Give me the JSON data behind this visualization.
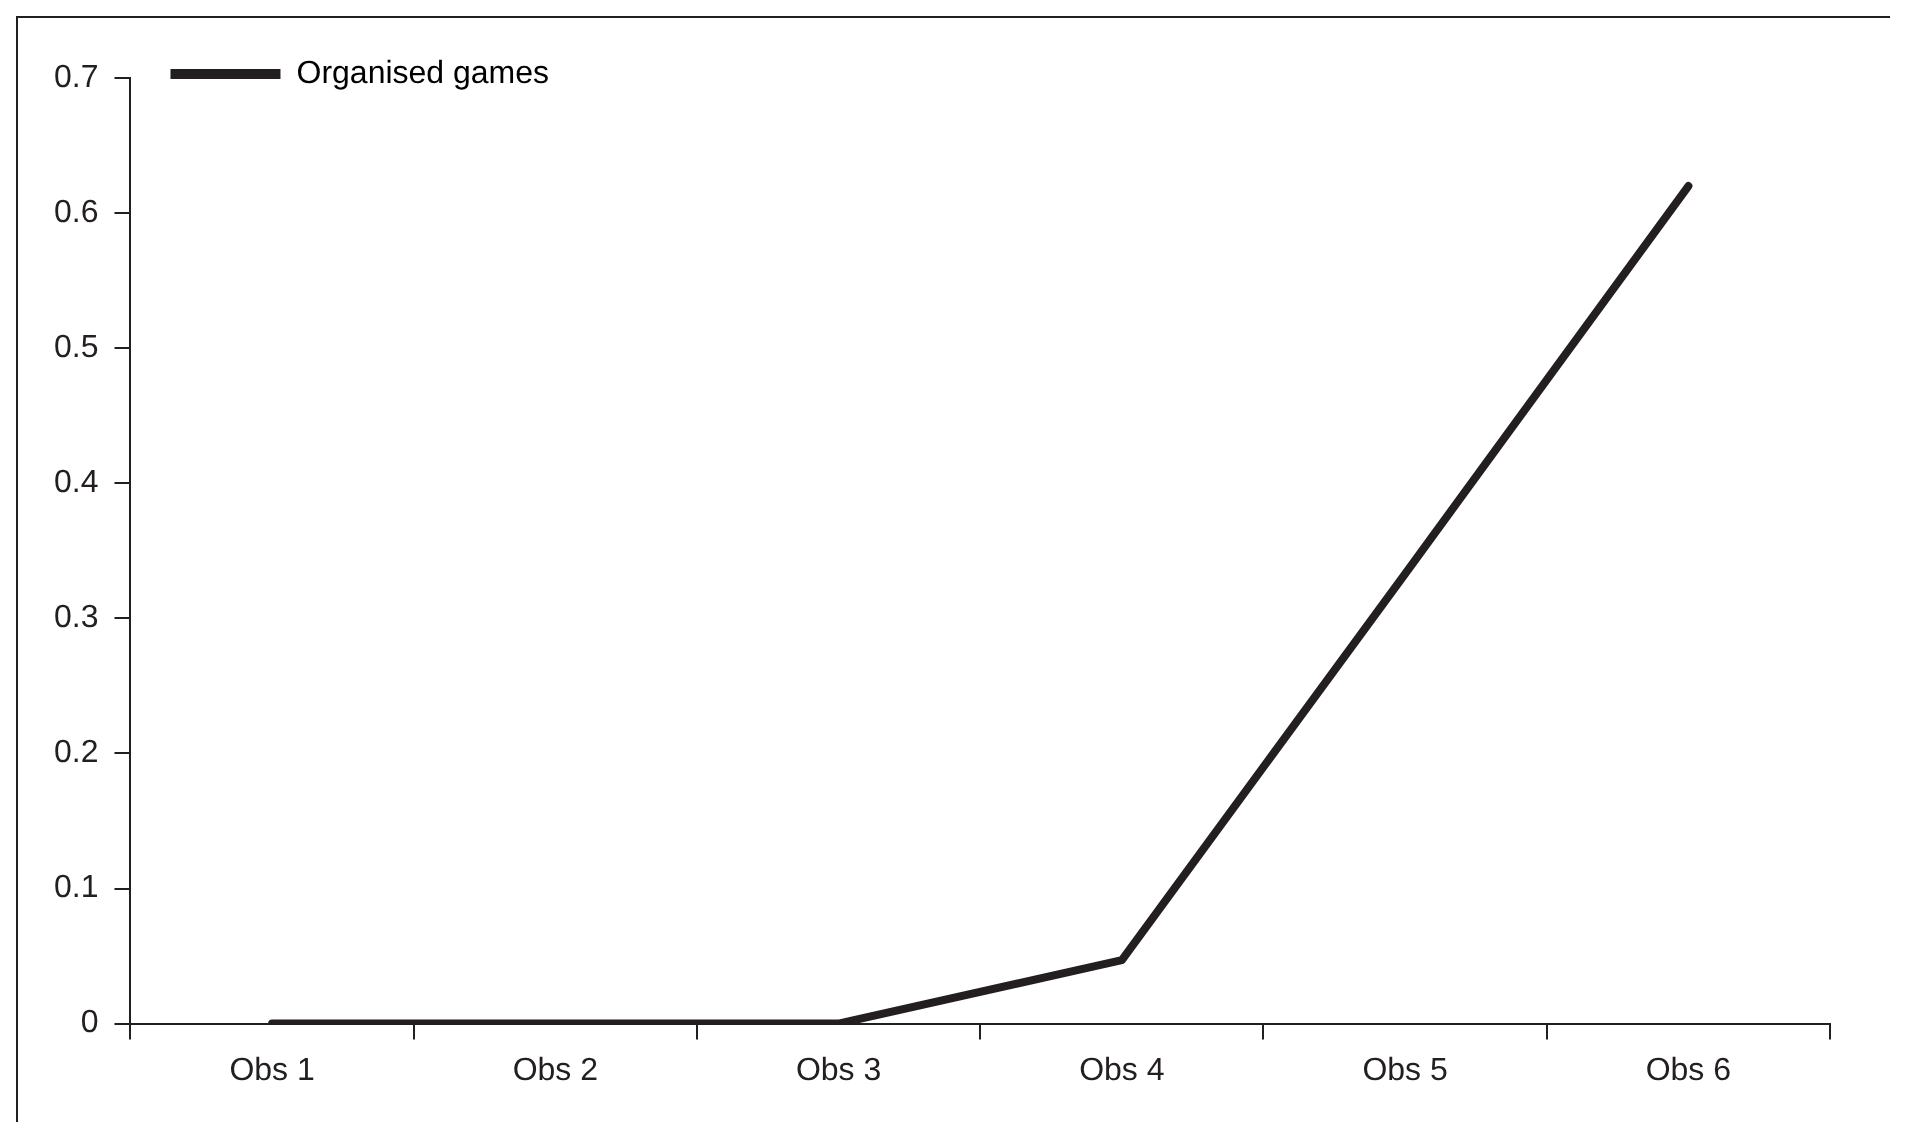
{
  "chart_data": {
    "type": "line",
    "categories": [
      "Obs 1",
      "Obs 2",
      "Obs 3",
      "Obs 4",
      "Obs 5",
      "Obs 6"
    ],
    "series": [
      {
        "name": "Organised games",
        "color": "#231f20",
        "values": [
          0,
          0,
          0,
          0.047,
          0.333,
          0.62
        ]
      }
    ],
    "ylim": [
      0,
      0.7
    ],
    "yticks": [
      0,
      0.1,
      0.2,
      0.3,
      0.4,
      0.5,
      0.6,
      0.7
    ],
    "grid": false,
    "legend": "top left",
    "marker": "none",
    "line_style": "solid"
  }
}
